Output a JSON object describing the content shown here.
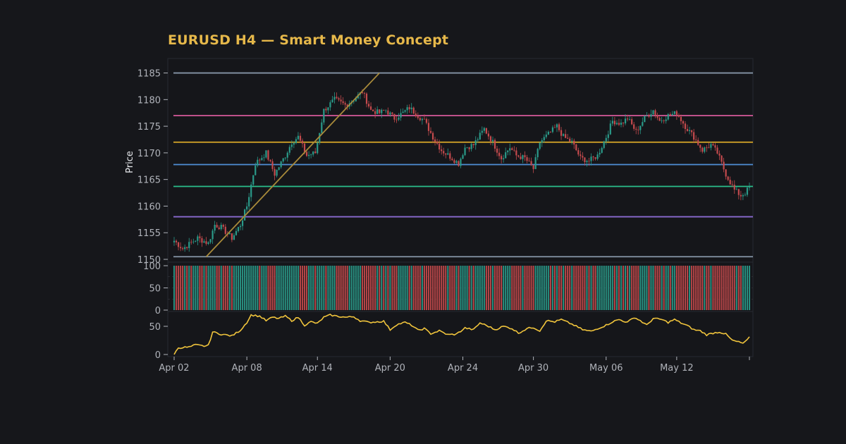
{
  "chart_data": {
    "type": "candlestick",
    "title": "EURUSD H4 — Smart Money Concept",
    "ylabel": "Price",
    "price_ylim": [
      1150,
      1186
    ],
    "price_ticks": [
      1150,
      1155,
      1160,
      1165,
      1170,
      1175,
      1180,
      1185
    ],
    "horizontal_levels": [
      {
        "value": 1185,
        "color": "#8696a8"
      },
      {
        "value": 1177,
        "color": "#d75a9a"
      },
      {
        "value": 1172,
        "color": "#d9a928"
      },
      {
        "value": 1167.8,
        "color": "#4f8fd6"
      },
      {
        "value": 1163.7,
        "color": "#2bbf8c"
      },
      {
        "value": 1158,
        "color": "#8a6ad0"
      },
      {
        "value": 1150.5,
        "color": "#8696a8"
      }
    ],
    "trendline": {
      "from": {
        "date": "Apr 05",
        "value": 1150.5
      },
      "to": {
        "date": "Apr 18",
        "value": 1185
      },
      "color": "#a88a3a"
    },
    "price_anchors": [
      {
        "x": 0,
        "p": 1153.5
      },
      {
        "x": 4,
        "p": 1152
      },
      {
        "x": 11,
        "p": 1154
      },
      {
        "x": 16,
        "p": 1153
      },
      {
        "x": 19,
        "p": 1156.5
      },
      {
        "x": 22,
        "p": 1156
      },
      {
        "x": 27,
        "p": 1154
      },
      {
        "x": 31,
        "p": 1156.5
      },
      {
        "x": 34,
        "p": 1160
      },
      {
        "x": 38,
        "p": 1168
      },
      {
        "x": 43,
        "p": 1170
      },
      {
        "x": 47,
        "p": 1166
      },
      {
        "x": 52,
        "p": 1169.5
      },
      {
        "x": 55,
        "p": 1172
      },
      {
        "x": 58,
        "p": 1173
      },
      {
        "x": 62,
        "p": 1169.5
      },
      {
        "x": 66,
        "p": 1170
      },
      {
        "x": 70,
        "p": 1178
      },
      {
        "x": 75,
        "p": 1180
      },
      {
        "x": 80,
        "p": 1179
      },
      {
        "x": 84,
        "p": 1180
      },
      {
        "x": 88,
        "p": 1181.5
      },
      {
        "x": 92,
        "p": 1178
      },
      {
        "x": 96,
        "p": 1177.5
      },
      {
        "x": 99,
        "p": 1178
      },
      {
        "x": 103,
        "p": 1176.5
      },
      {
        "x": 107,
        "p": 1177.5
      },
      {
        "x": 110,
        "p": 1178.5
      },
      {
        "x": 114,
        "p": 1177
      },
      {
        "x": 117,
        "p": 1176
      },
      {
        "x": 121,
        "p": 1173
      },
      {
        "x": 125,
        "p": 1170.5
      },
      {
        "x": 130,
        "p": 1169
      },
      {
        "x": 133,
        "p": 1168
      },
      {
        "x": 136,
        "p": 1171
      },
      {
        "x": 140,
        "p": 1171.5
      },
      {
        "x": 145,
        "p": 1174.5
      },
      {
        "x": 149,
        "p": 1172
      },
      {
        "x": 153,
        "p": 1169
      },
      {
        "x": 157,
        "p": 1171
      },
      {
        "x": 160,
        "p": 1169.5
      },
      {
        "x": 164,
        "p": 1169
      },
      {
        "x": 168,
        "p": 1167
      },
      {
        "x": 171,
        "p": 1172
      },
      {
        "x": 175,
        "p": 1173.5
      },
      {
        "x": 179,
        "p": 1175
      },
      {
        "x": 182,
        "p": 1173
      },
      {
        "x": 186,
        "p": 1172
      },
      {
        "x": 190,
        "p": 1169
      },
      {
        "x": 194,
        "p": 1168.5
      },
      {
        "x": 198,
        "p": 1169.5
      },
      {
        "x": 202,
        "p": 1173
      },
      {
        "x": 205,
        "p": 1176
      },
      {
        "x": 209,
        "p": 1175.5
      },
      {
        "x": 212,
        "p": 1176.5
      },
      {
        "x": 216,
        "p": 1174
      },
      {
        "x": 220,
        "p": 1176.5
      },
      {
        "x": 224,
        "p": 1178
      },
      {
        "x": 227,
        "p": 1176
      },
      {
        "x": 231,
        "p": 1177
      },
      {
        "x": 235,
        "p": 1177.5
      },
      {
        "x": 239,
        "p": 1175
      },
      {
        "x": 243,
        "p": 1173
      },
      {
        "x": 247,
        "p": 1170.5
      },
      {
        "x": 251,
        "p": 1171.5
      },
      {
        "x": 254,
        "p": 1170
      },
      {
        "x": 258,
        "p": 1166
      },
      {
        "x": 262,
        "p": 1163
      },
      {
        "x": 265,
        "p": 1162
      },
      {
        "x": 267,
        "p": 1162.5
      },
      {
        "x": 269,
        "p": 1163.5
      }
    ],
    "oscillator_anchors": [
      {
        "x": 0,
        "v": 0
      },
      {
        "x": 2,
        "v": 12
      },
      {
        "x": 7,
        "v": 13
      },
      {
        "x": 10,
        "v": 17
      },
      {
        "x": 14,
        "v": 15
      },
      {
        "x": 16,
        "v": 16
      },
      {
        "x": 18,
        "v": 40
      },
      {
        "x": 22,
        "v": 36
      },
      {
        "x": 27,
        "v": 33
      },
      {
        "x": 31,
        "v": 43
      },
      {
        "x": 34,
        "v": 57
      },
      {
        "x": 36,
        "v": 70
      },
      {
        "x": 40,
        "v": 68
      },
      {
        "x": 43,
        "v": 60
      },
      {
        "x": 46,
        "v": 66
      },
      {
        "x": 49,
        "v": 64
      },
      {
        "x": 52,
        "v": 68
      },
      {
        "x": 55,
        "v": 60
      },
      {
        "x": 58,
        "v": 66
      },
      {
        "x": 61,
        "v": 52
      },
      {
        "x": 64,
        "v": 58
      },
      {
        "x": 67,
        "v": 55
      },
      {
        "x": 70,
        "v": 66
      },
      {
        "x": 73,
        "v": 70
      },
      {
        "x": 76,
        "v": 68
      },
      {
        "x": 80,
        "v": 66
      },
      {
        "x": 84,
        "v": 67
      },
      {
        "x": 87,
        "v": 60
      },
      {
        "x": 91,
        "v": 57
      },
      {
        "x": 95,
        "v": 58
      },
      {
        "x": 98,
        "v": 59
      },
      {
        "x": 101,
        "v": 44
      },
      {
        "x": 104,
        "v": 53
      },
      {
        "x": 108,
        "v": 57
      },
      {
        "x": 111,
        "v": 52
      },
      {
        "x": 114,
        "v": 43
      },
      {
        "x": 117,
        "v": 46
      },
      {
        "x": 120,
        "v": 37
      },
      {
        "x": 124,
        "v": 42
      },
      {
        "x": 128,
        "v": 35
      },
      {
        "x": 132,
        "v": 36
      },
      {
        "x": 136,
        "v": 47
      },
      {
        "x": 140,
        "v": 44
      },
      {
        "x": 143,
        "v": 56
      },
      {
        "x": 147,
        "v": 50
      },
      {
        "x": 150,
        "v": 44
      },
      {
        "x": 154,
        "v": 50
      },
      {
        "x": 158,
        "v": 46
      },
      {
        "x": 161,
        "v": 38
      },
      {
        "x": 165,
        "v": 46
      },
      {
        "x": 168,
        "v": 48
      },
      {
        "x": 171,
        "v": 42
      },
      {
        "x": 174,
        "v": 60
      },
      {
        "x": 178,
        "v": 58
      },
      {
        "x": 181,
        "v": 62
      },
      {
        "x": 184,
        "v": 57
      },
      {
        "x": 187,
        "v": 52
      },
      {
        "x": 191,
        "v": 44
      },
      {
        "x": 195,
        "v": 41
      },
      {
        "x": 198,
        "v": 46
      },
      {
        "x": 202,
        "v": 52
      },
      {
        "x": 205,
        "v": 58
      },
      {
        "x": 208,
        "v": 62
      },
      {
        "x": 212,
        "v": 57
      },
      {
        "x": 215,
        "v": 66
      },
      {
        "x": 218,
        "v": 60
      },
      {
        "x": 221,
        "v": 52
      },
      {
        "x": 224,
        "v": 64
      },
      {
        "x": 228,
        "v": 62
      },
      {
        "x": 231,
        "v": 57
      },
      {
        "x": 234,
        "v": 62
      },
      {
        "x": 237,
        "v": 56
      },
      {
        "x": 240,
        "v": 51
      },
      {
        "x": 243,
        "v": 44
      },
      {
        "x": 246,
        "v": 42
      },
      {
        "x": 249,
        "v": 35
      },
      {
        "x": 252,
        "v": 38
      },
      {
        "x": 255,
        "v": 40
      },
      {
        "x": 258,
        "v": 36
      },
      {
        "x": 261,
        "v": 25
      },
      {
        "x": 264,
        "v": 22
      },
      {
        "x": 266,
        "v": 20
      },
      {
        "x": 267,
        "v": 22
      },
      {
        "x": 269,
        "v": 30
      }
    ],
    "volume_ylim": [
      0,
      100
    ],
    "volume_ticks": [
      0,
      50,
      100
    ],
    "oscillator_ylim": [
      0,
      75
    ],
    "oscillator_ticks": [
      0,
      50
    ],
    "oscillator_color": "#f0c43c",
    "x_ticks": [
      {
        "label": "Apr 02",
        "x": 0
      },
      {
        "label": "Apr 08",
        "x": 34
      },
      {
        "label": "Apr 14",
        "x": 67
      },
      {
        "label": "Apr 20",
        "x": 101
      },
      {
        "label": "Apr 24",
        "x": 135
      },
      {
        "label": "Apr 30",
        "x": 168
      },
      {
        "label": "May 06",
        "x": 202
      },
      {
        "label": "May 12",
        "x": 235
      }
    ],
    "candle_count": 270,
    "up_color": "#2a9a89",
    "down_color": "#c44a4d"
  }
}
